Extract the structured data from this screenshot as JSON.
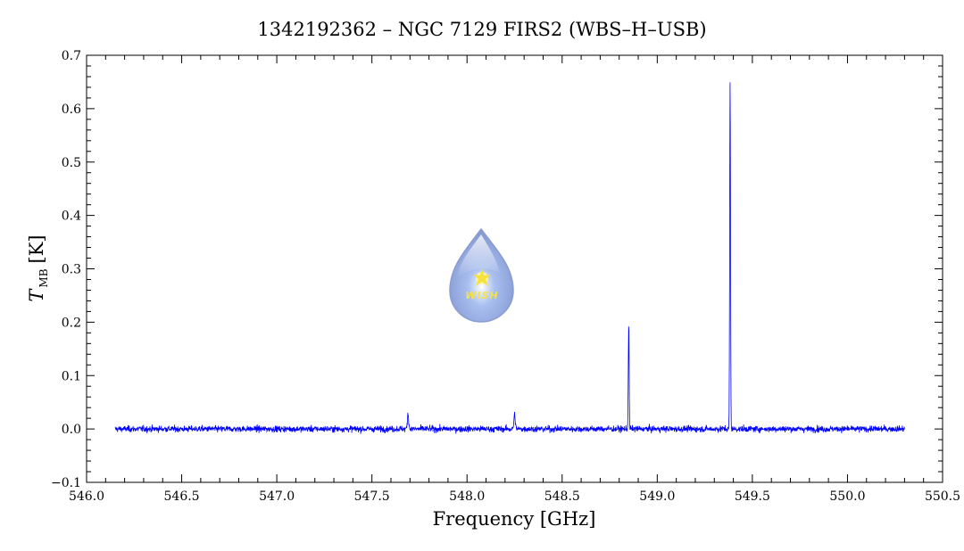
{
  "chart_data": {
    "type": "line",
    "title": "1342192362 – NGC 7129 FIRS2 (WBS–H–USB)",
    "xlabel": "Frequency [GHz]",
    "ylabel_main": "T",
    "ylabel_sub": "MB",
    "ylabel_unit": "[K]",
    "xlim": [
      546.0,
      550.5
    ],
    "ylim": [
      -0.1,
      0.7
    ],
    "x_ticks": [
      "546.0",
      "546.5",
      "547.0",
      "547.5",
      "548.0",
      "548.5",
      "549.0",
      "549.5",
      "550.0",
      "550.5"
    ],
    "y_ticks": [
      "−0.1",
      "0.0",
      "0.1",
      "0.2",
      "0.3",
      "0.4",
      "0.5",
      "0.6",
      "0.7"
    ],
    "grid": false,
    "series": [
      {
        "color": "#0000ff",
        "x_range": [
          546.15,
          550.3
        ],
        "baseline": 0.0,
        "noise_rms": 0.005,
        "features": [
          {
            "x": 547.69,
            "peak": 0.028
          },
          {
            "x": 548.25,
            "peak": 0.027
          },
          {
            "x": 548.85,
            "peak": 0.197
          },
          {
            "x": 549.383,
            "peak": 0.652
          }
        ]
      }
    ],
    "logo_text": "WISH"
  }
}
